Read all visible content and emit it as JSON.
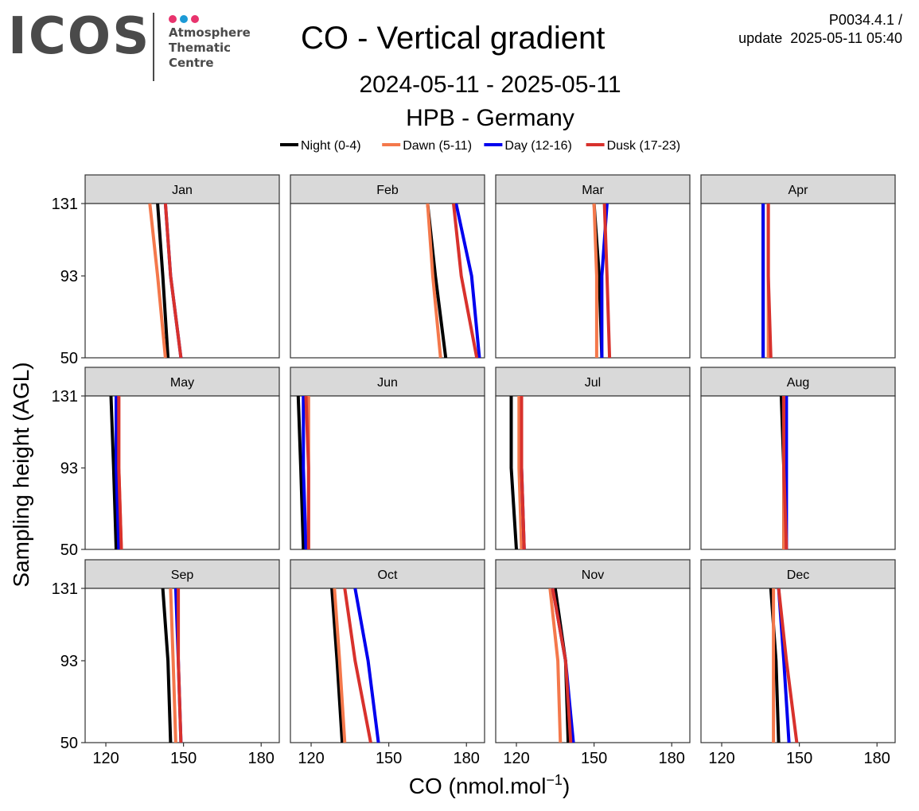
{
  "header": {
    "logo_word": "ICOS",
    "logo_lines": [
      "Atmosphere",
      "Thematic",
      "Centre"
    ],
    "logo_dot_colors": [
      "#e8336d",
      "#1c9ad6",
      "#e8336d"
    ],
    "title": "CO - Vertical gradient",
    "date_range": "2024-05-11 - 2025-05-11",
    "station": "HPB - Germany",
    "version_line1": "P0034.4.1 /",
    "version_line2": "update  2025-05-11 05:40"
  },
  "chart_data": {
    "type": "line",
    "xlabel": "CO (nmol.mol",
    "xlabel_sup": "−1",
    "xlabel_close": ")",
    "ylabel": "Sampling height (AGL)",
    "xlim": [
      112,
      187
    ],
    "x_ticks": [
      120,
      150,
      180
    ],
    "y_ticks": [
      50,
      93,
      131
    ],
    "ylim": [
      50,
      131
    ],
    "legend_position": "top",
    "series_styles": [
      {
        "name": "Night (0-4)",
        "color": "#000000"
      },
      {
        "name": "Dawn (5-11)",
        "color": "#f4784b"
      },
      {
        "name": "Day (12-16)",
        "color": "#0000ee"
      },
      {
        "name": "Dusk (17-23)",
        "color": "#d8312c"
      }
    ],
    "heights": [
      50,
      93,
      131
    ],
    "panels": [
      {
        "month": "Jan",
        "series": {
          "Night (0-4)": [
            144,
            142,
            140
          ],
          "Dawn (5-11)": [
            143,
            140,
            137
          ],
          "Day (12-16)": [
            149,
            145,
            143
          ],
          "Dusk (17-23)": [
            149,
            145,
            143
          ]
        }
      },
      {
        "month": "Feb",
        "series": {
          "Night (0-4)": [
            172,
            168,
            165
          ],
          "Dawn (5-11)": [
            170,
            167,
            165
          ],
          "Day (12-16)": [
            185,
            182,
            176
          ],
          "Dusk (17-23)": [
            184,
            178,
            175
          ]
        }
      },
      {
        "month": "Mar",
        "series": {
          "Night (0-4)": [
            153,
            152,
            150
          ],
          "Dawn (5-11)": [
            151,
            151,
            150
          ],
          "Day (12-16)": [
            153,
            153,
            155
          ],
          "Dusk (17-23)": [
            156,
            155,
            154
          ]
        }
      },
      {
        "month": "Apr",
        "series": {
          "Night (0-4)": [
            136,
            136,
            136
          ],
          "Dawn (5-11)": [
            138,
            138,
            138
          ],
          "Day (12-16)": [
            136,
            136,
            136
          ],
          "Dusk (17-23)": [
            139,
            138,
            138
          ]
        }
      },
      {
        "month": "May",
        "series": {
          "Night (0-4)": [
            124,
            123,
            122
          ],
          "Dawn (5-11)": [
            126,
            125,
            125
          ],
          "Day (12-16)": [
            125,
            124,
            124
          ],
          "Dusk (17-23)": [
            126,
            125,
            125
          ]
        }
      },
      {
        "month": "Jun",
        "series": {
          "Night (0-4)": [
            117,
            116,
            115
          ],
          "Dawn (5-11)": [
            119,
            119,
            119
          ],
          "Day (12-16)": [
            118,
            117,
            117
          ],
          "Dusk (17-23)": [
            119,
            119,
            118
          ]
        }
      },
      {
        "month": "Jul",
        "series": {
          "Night (0-4)": [
            120,
            118,
            118
          ],
          "Dawn (5-11)": [
            122,
            121,
            121
          ],
          "Day (12-16)": [
            123,
            122,
            122
          ],
          "Dusk (17-23)": [
            123,
            122,
            122
          ]
        }
      },
      {
        "month": "Aug",
        "series": {
          "Night (0-4)": [
            144,
            144,
            143
          ],
          "Dawn (5-11)": [
            144,
            144,
            144
          ],
          "Day (12-16)": [
            145,
            145,
            145
          ],
          "Dusk (17-23)": [
            145,
            144,
            144
          ]
        }
      },
      {
        "month": "Sep",
        "series": {
          "Night (0-4)": [
            145,
            144,
            142
          ],
          "Dawn (5-11)": [
            147,
            146,
            145
          ],
          "Day (12-16)": [
            149,
            148,
            147
          ],
          "Dusk (17-23)": [
            149,
            148,
            148
          ]
        }
      },
      {
        "month": "Oct",
        "series": {
          "Night (0-4)": [
            132,
            130,
            128
          ],
          "Dawn (5-11)": [
            133,
            131,
            129
          ],
          "Day (12-16)": [
            146,
            142,
            137
          ],
          "Dusk (17-23)": [
            143,
            137,
            133
          ]
        }
      },
      {
        "month": "Nov",
        "series": {
          "Night (0-4)": [
            140,
            139,
            135
          ],
          "Dawn (5-11)": [
            137,
            136,
            133
          ],
          "Day (12-16)": [
            142,
            139,
            134
          ],
          "Dusk (17-23)": [
            141,
            139,
            134
          ]
        }
      },
      {
        "month": "Dec",
        "series": {
          "Night (0-4)": [
            142,
            141,
            139
          ],
          "Dawn (5-11)": [
            140,
            140,
            140
          ],
          "Day (12-16)": [
            146,
            144,
            142
          ],
          "Dusk (17-23)": [
            149,
            145,
            142
          ]
        }
      }
    ]
  }
}
